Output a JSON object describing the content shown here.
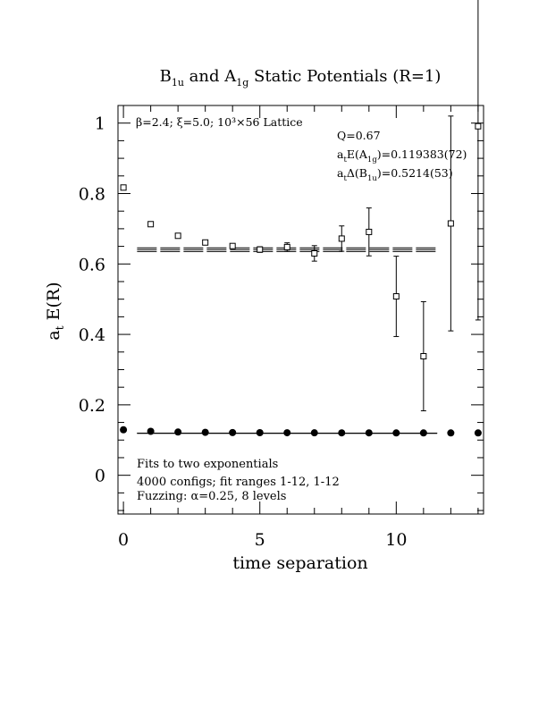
{
  "chart_data": {
    "type": "scatter",
    "title": {
      "b": "B",
      "b_sub": "1u",
      "mid": " and A",
      "a_sub": "1g",
      "tail": " Static Potentials (R=1)"
    },
    "xlabel": "time separation",
    "ylabel": {
      "main": "a",
      "sub": "t",
      "rest": " E(R)"
    },
    "xlim": [
      -0.2,
      13.2
    ],
    "ylim": [
      -0.11,
      1.05
    ],
    "x_ticks": [
      0,
      5,
      10
    ],
    "y_ticks": [
      0,
      0.2,
      0.4,
      0.6,
      0.8,
      1
    ],
    "x_tick_labels": [
      "0",
      "5",
      "10"
    ],
    "y_tick_labels": [
      "0",
      "0.2",
      "0.4",
      "0.6",
      "0.8",
      "1"
    ],
    "grid": false,
    "annotations": {
      "lattice": "β=2.4;  ξ=5.0;  10³×56 Lattice",
      "q": "Q=0.67",
      "fit_a1g": {
        "a": "a",
        "t": "t",
        "e": "E(A",
        "sub": "1g",
        "val": ")=0.119383(72)"
      },
      "fit_b1u": {
        "a": "a",
        "t": "t",
        "d": "Δ(B",
        "sub": "1u",
        "val": ")=0.5214(53)"
      },
      "fits": "Fits to two exponentials",
      "configs": "4000 configs; fit ranges 1-12, 1-12",
      "fuzzing": "Fuzzing: α=0.25, 8 levels"
    },
    "series": [
      {
        "marker": "open-square",
        "points": [
          {
            "x": 0,
            "y": 0.817,
            "err": 0
          },
          {
            "x": 1,
            "y": 0.713,
            "err": 0
          },
          {
            "x": 2,
            "y": 0.68,
            "err": 0
          },
          {
            "x": 3,
            "y": 0.661,
            "err": 0.004
          },
          {
            "x": 4,
            "y": 0.651,
            "err": 0.006
          },
          {
            "x": 5,
            "y": 0.641,
            "err": 0.008
          },
          {
            "x": 6,
            "y": 0.648,
            "err": 0.012
          },
          {
            "x": 7,
            "y": 0.63,
            "err": 0.022
          },
          {
            "x": 8,
            "y": 0.672,
            "err": 0.036
          },
          {
            "x": 9,
            "y": 0.691,
            "err": 0.068
          },
          {
            "x": 10,
            "y": 0.508,
            "err": 0.114
          },
          {
            "x": 11,
            "y": 0.338,
            "err": 0.155
          },
          {
            "x": 12,
            "y": 0.715,
            "err": 0.305
          },
          {
            "x": 13,
            "y": 0.991,
            "err": 0.55
          }
        ],
        "fit": {
          "x": [
            0.5,
            11.5
          ],
          "center": 0.6406,
          "half_width": 0.0053
        }
      },
      {
        "marker": "filled-circle",
        "points": [
          {
            "x": 0,
            "y": 0.1292,
            "err": 0
          },
          {
            "x": 1,
            "y": 0.1248,
            "err": 0
          },
          {
            "x": 2,
            "y": 0.1228,
            "err": 0
          },
          {
            "x": 3,
            "y": 0.1219,
            "err": 0
          },
          {
            "x": 4,
            "y": 0.1213,
            "err": 0
          },
          {
            "x": 5,
            "y": 0.121,
            "err": 0
          },
          {
            "x": 6,
            "y": 0.1208,
            "err": 0
          },
          {
            "x": 7,
            "y": 0.1206,
            "err": 0
          },
          {
            "x": 8,
            "y": 0.1205,
            "err": 0
          },
          {
            "x": 9,
            "y": 0.1204,
            "err": 0
          },
          {
            "x": 10,
            "y": 0.1203,
            "err": 0
          },
          {
            "x": 11,
            "y": 0.1203,
            "err": 0
          },
          {
            "x": 12,
            "y": 0.1202,
            "err": 0
          },
          {
            "x": 13,
            "y": 0.1202,
            "err": 0
          }
        ],
        "fit": {
          "x": [
            0.5,
            11.5
          ],
          "center": 0.119383,
          "half_width": 7e-05
        }
      }
    ]
  }
}
